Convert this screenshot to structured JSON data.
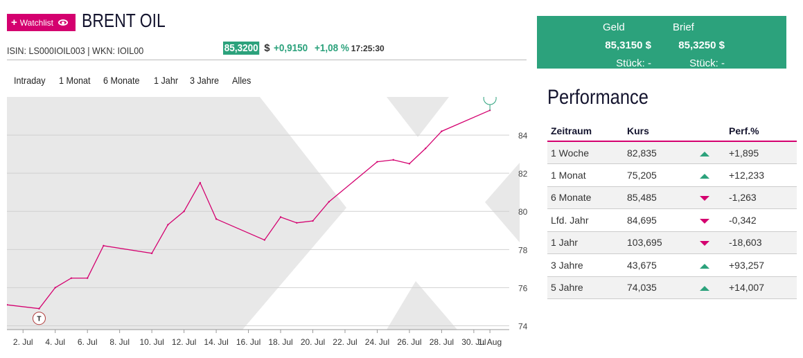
{
  "header": {
    "watchlist_label": "Watchlist",
    "title": "BRENT OIL",
    "isin_line": "ISIN: LS000IOIL003 | WKN: IOIL00",
    "price": "85,3200",
    "currency": "$",
    "change_abs": "+0,9150",
    "change_pct": "+1,08 %",
    "time": "17:25:30"
  },
  "ranges": [
    "Intraday",
    "1 Monat",
    "6 Monate",
    "1 Jahr",
    "3 Jahre",
    "Alles"
  ],
  "quote": {
    "geld_label": "Geld",
    "geld_value": "85,3150 $",
    "geld_pieces": "Stück: -",
    "brief_label": "Brief",
    "brief_value": "85,3250 $",
    "brief_pieces": "Stück: -"
  },
  "performance": {
    "title": "Performance",
    "headers": [
      "Zeitraum",
      "Kurs",
      "",
      "Perf.%"
    ],
    "rows": [
      {
        "period": "1 Woche",
        "kurs": "82,835",
        "dir": "up",
        "perf": "+1,895"
      },
      {
        "period": "1 Monat",
        "kurs": "75,205",
        "dir": "up",
        "perf": "+12,233"
      },
      {
        "period": "6 Monate",
        "kurs": "85,485",
        "dir": "down",
        "perf": "-1,263"
      },
      {
        "period": "Lfd. Jahr",
        "kurs": "84,695",
        "dir": "down",
        "perf": "-0,342"
      },
      {
        "period": "1 Jahr",
        "kurs": "103,695",
        "dir": "down",
        "perf": "-18,603"
      },
      {
        "period": "3 Jahre",
        "kurs": "43,675",
        "dir": "up",
        "perf": "+93,257"
      },
      {
        "period": "5 Jahre",
        "kurs": "74,035",
        "dir": "up",
        "perf": "+14,007"
      }
    ]
  },
  "colors": {
    "magenta": "#d4006f",
    "green": "#2ca27c"
  },
  "chart_data": {
    "type": "line",
    "x": [
      "1. Jul",
      "3. Jul",
      "4. Jul",
      "5. Jul",
      "6. Jul",
      "7. Jul",
      "10. Jul",
      "11. Jul",
      "12. Jul",
      "13. Jul",
      "14. Jul",
      "17. Jul",
      "18. Jul",
      "19. Jul",
      "20. Jul",
      "21. Jul",
      "24. Jul",
      "25. Jul",
      "26. Jul",
      "27. Jul",
      "28. Jul",
      "1. Aug"
    ],
    "y": [
      75.1,
      74.9,
      76.0,
      76.5,
      76.5,
      78.2,
      77.8,
      79.3,
      80.0,
      81.5,
      79.6,
      78.5,
      79.7,
      79.4,
      79.5,
      80.5,
      82.6,
      82.7,
      82.5,
      83.3,
      84.2,
      85.3
    ],
    "x_ticks": [
      "2. Jul",
      "4. Jul",
      "6. Jul",
      "8. Jul",
      "10. Jul",
      "12. Jul",
      "14. Jul",
      "16. Jul",
      "18. Jul",
      "20. Jul",
      "22. Jul",
      "24. Jul",
      "26. Jul",
      "28. Jul",
      "30. Jul",
      "1. Aug"
    ],
    "y_ticks": [
      74,
      76,
      78,
      80,
      82,
      84
    ],
    "ylim": [
      73.8,
      86.0
    ],
    "markers": [
      {
        "label": "T",
        "index": 1
      }
    ],
    "grid": true
  }
}
